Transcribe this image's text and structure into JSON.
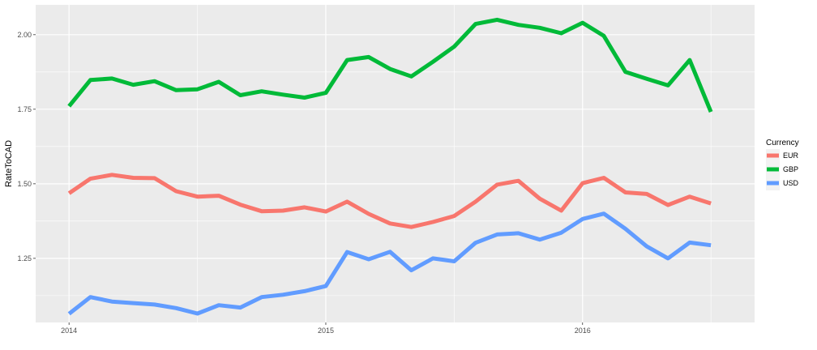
{
  "chart_data": {
    "type": "line",
    "title": "",
    "xlabel": "",
    "ylabel": "RateToCAD",
    "x_ticks": [
      {
        "value": 2014,
        "label": "2014"
      },
      {
        "value": 2015,
        "label": "2015"
      },
      {
        "value": 2016,
        "label": "2016"
      }
    ],
    "y_ticks": [
      {
        "value": 1.25,
        "label": "1.25"
      },
      {
        "value": 1.5,
        "label": "1.50"
      },
      {
        "value": 1.75,
        "label": "1.75"
      },
      {
        "value": 2.0,
        "label": "2.00"
      }
    ],
    "xlim": [
      2013.87,
      2016.67
    ],
    "ylim": [
      1.035,
      2.1
    ],
    "grid": true,
    "legend": {
      "title": "Currency",
      "position": "right"
    },
    "series": [
      {
        "name": "EUR",
        "color": "#F8766D",
        "x": [
          2014.0,
          2014.083,
          2014.167,
          2014.25,
          2014.333,
          2014.417,
          2014.5,
          2014.583,
          2014.667,
          2014.75,
          2014.833,
          2014.917,
          2015.0,
          2015.083,
          2015.167,
          2015.25,
          2015.333,
          2015.417,
          2015.5,
          2015.583,
          2015.667,
          2015.75,
          2015.833,
          2015.917,
          2016.0,
          2016.083,
          2016.167,
          2016.25,
          2016.333,
          2016.417,
          2016.5
        ],
        "y": [
          1.468,
          1.517,
          1.53,
          1.52,
          1.519,
          1.475,
          1.457,
          1.46,
          1.43,
          1.408,
          1.41,
          1.421,
          1.407,
          1.44,
          1.399,
          1.367,
          1.355,
          1.372,
          1.392,
          1.44,
          1.497,
          1.51,
          1.45,
          1.41,
          1.502,
          1.52,
          1.471,
          1.466,
          1.429,
          1.457,
          1.434
        ]
      },
      {
        "name": "GBP",
        "color": "#00BA38",
        "x": [
          2014.0,
          2014.083,
          2014.167,
          2014.25,
          2014.333,
          2014.417,
          2014.5,
          2014.583,
          2014.667,
          2014.75,
          2014.833,
          2014.917,
          2015.0,
          2015.083,
          2015.167,
          2015.25,
          2015.333,
          2015.417,
          2015.5,
          2015.583,
          2015.667,
          2015.75,
          2015.833,
          2015.917,
          2016.0,
          2016.083,
          2016.167,
          2016.25,
          2016.333,
          2016.417,
          2016.5
        ],
        "y": [
          1.76,
          1.848,
          1.853,
          1.832,
          1.844,
          1.814,
          1.817,
          1.842,
          1.797,
          1.81,
          1.799,
          1.789,
          1.805,
          1.915,
          1.925,
          1.885,
          1.86,
          1.909,
          1.96,
          2.036,
          2.05,
          2.033,
          2.023,
          2.005,
          2.04,
          1.996,
          1.875,
          1.852,
          1.83,
          1.915,
          1.741
        ]
      },
      {
        "name": "USD",
        "color": "#619CFF",
        "x": [
          2014.0,
          2014.083,
          2014.167,
          2014.25,
          2014.333,
          2014.417,
          2014.5,
          2014.583,
          2014.667,
          2014.75,
          2014.833,
          2014.917,
          2015.0,
          2015.083,
          2015.167,
          2015.25,
          2015.333,
          2015.417,
          2015.5,
          2015.583,
          2015.667,
          2015.75,
          2015.833,
          2015.917,
          2016.0,
          2016.083,
          2016.167,
          2016.25,
          2016.333,
          2016.417,
          2016.5
        ],
        "y": [
          1.064,
          1.12,
          1.105,
          1.1,
          1.095,
          1.083,
          1.065,
          1.093,
          1.085,
          1.12,
          1.128,
          1.14,
          1.157,
          1.271,
          1.247,
          1.272,
          1.21,
          1.25,
          1.24,
          1.302,
          1.33,
          1.334,
          1.313,
          1.336,
          1.382,
          1.4,
          1.349,
          1.29,
          1.25,
          1.303,
          1.294
        ]
      }
    ]
  }
}
